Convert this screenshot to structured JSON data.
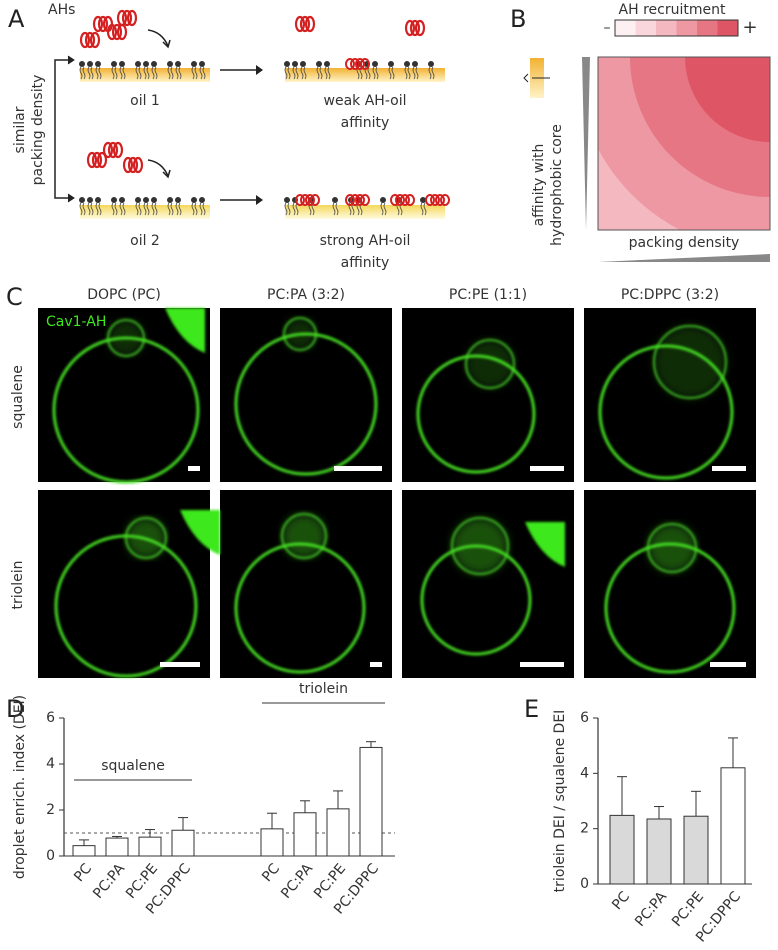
{
  "panel_labels": [
    "A",
    "B",
    "C",
    "D",
    "E"
  ],
  "panel_a": {
    "ahs": "AHs",
    "y_label": [
      "similar",
      "packing density"
    ],
    "oil1": "oil 1",
    "oil2": "oil 2",
    "weak": [
      "weak AH-oil",
      "affinity"
    ],
    "strong": [
      "strong AH-oil",
      "affinity"
    ]
  },
  "panel_b": {
    "title": "AH recruitment",
    "minus": "–",
    "plus": "+",
    "y_label": [
      "affinity with",
      "hydrophobic core"
    ],
    "x_label": "packing density"
  },
  "panel_c": {
    "columns": [
      "DOPC (PC)",
      "PC:PA (3:2)",
      "PC:PE (1:1)",
      "PC:DPPC (3:2)"
    ],
    "rows": [
      "squalene",
      "triolein"
    ],
    "stain": "Cav1-AH"
  },
  "chart_data": [
    {
      "type": "bar",
      "y_label": "droplet enrich. index (DEI)",
      "categories": [
        "PC",
        "PC:PA",
        "PC:PE",
        "PC:DPPC"
      ],
      "groups": [
        {
          "name": "squalene",
          "values": [
            0.45,
            0.78,
            0.82,
            1.12
          ],
          "errors": [
            0.25,
            0.07,
            0.33,
            0.55
          ]
        },
        {
          "name": "triolein",
          "values": [
            1.18,
            1.88,
            2.05,
            4.72
          ],
          "errors": [
            0.68,
            0.52,
            0.78,
            0.25
          ]
        }
      ],
      "reference_line": 1,
      "color": "#ffffff",
      "ylim": [
        0,
        6
      ],
      "yticks": [
        0,
        2,
        4,
        6
      ]
    },
    {
      "type": "bar",
      "y_label": "triolein DEI / squalene DEI",
      "categories": [
        "PC",
        "PC:PA",
        "PC:PE",
        "PC:DPPC"
      ],
      "values": [
        2.48,
        2.35,
        2.45,
        4.2
      ],
      "errors": [
        1.4,
        0.45,
        0.9,
        1.08
      ],
      "colors": [
        "#d9d9d9",
        "#d9d9d9",
        "#d9d9d9",
        "#ffffff"
      ],
      "ylim": [
        0,
        6
      ],
      "yticks": [
        0,
        2,
        4,
        6
      ]
    }
  ]
}
